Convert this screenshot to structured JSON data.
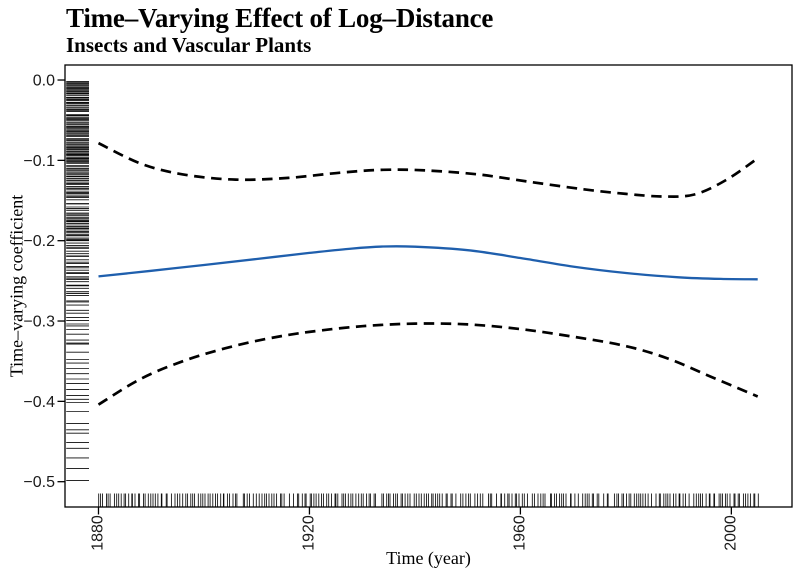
{
  "header": {
    "title": "Time–Varying Effect of Log–Distance",
    "subtitle": "Insects and Vascular Plants"
  },
  "chart_data": {
    "type": "line",
    "title": "Time–Varying Effect of Log–Distance",
    "subtitle": "Insects and Vascular Plants",
    "xlabel": "Time (year)",
    "ylabel": "Time–varying coefficient",
    "grid": false,
    "legend": "none",
    "x_domain": [
      1873.65,
      2011.5
    ],
    "y_domain": [
      -0.5315,
      0.0187
    ],
    "x_ticks": {
      "values": [
        1880,
        1920,
        1960,
        2000
      ],
      "labels": [
        "1880",
        "1920",
        "1960",
        "2000"
      ]
    },
    "y_ticks": {
      "values": [
        0,
        -0.1,
        -0.2,
        -0.3,
        -0.4,
        -0.5
      ],
      "labels": [
        "0.0",
        "−0.1",
        "−0.2",
        "−0.3",
        "−0.4",
        "−0.5"
      ]
    },
    "series": [
      {
        "name": "estimate",
        "style": "solid",
        "color": "#1f5fad",
        "width": 2.3,
        "x": [
          1880,
          1890,
          1900,
          1910,
          1920,
          1928,
          1934,
          1940,
          1950,
          1960,
          1970,
          1980,
          1990,
          1998,
          2005
        ],
        "y": [
          -0.2445,
          -0.2375,
          -0.2302,
          -0.2228,
          -0.2152,
          -0.2098,
          -0.2072,
          -0.2075,
          -0.2118,
          -0.2215,
          -0.2322,
          -0.2402,
          -0.2456,
          -0.2476,
          -0.248
        ]
      },
      {
        "name": "upper-95-ci",
        "style": "dashed",
        "color": "#000000",
        "width": 2.7,
        "x": [
          1880,
          1888,
          1896,
          1906,
          1916,
          1926,
          1934,
          1942,
          1952,
          1962,
          1972,
          1980,
          1987,
          1993,
          1999,
          2005
        ],
        "y": [
          -0.0785,
          -0.104,
          -0.1175,
          -0.124,
          -0.1218,
          -0.1152,
          -0.1118,
          -0.1125,
          -0.1175,
          -0.127,
          -0.136,
          -0.1418,
          -0.145,
          -0.1425,
          -0.1245,
          -0.0975
        ]
      },
      {
        "name": "lower-95-ci",
        "style": "dashed",
        "color": "#000000",
        "width": 2.7,
        "x": [
          1880,
          1888,
          1896,
          1904,
          1912,
          1920,
          1930,
          1940,
          1950,
          1960,
          1970,
          1980,
          1988,
          1996,
          2005
        ],
        "y": [
          -0.404,
          -0.372,
          -0.35,
          -0.334,
          -0.322,
          -0.3135,
          -0.3065,
          -0.3032,
          -0.3042,
          -0.31,
          -0.3195,
          -0.3312,
          -0.3468,
          -0.369,
          -0.394
        ]
      }
    ],
    "rug_left": {
      "side": "left",
      "runs": [
        [
          -0.002,
          -0.105,
          0.0012
        ],
        [
          -0.105,
          -0.2,
          0.0016
        ],
        [
          -0.2,
          -0.265,
          0.0026
        ],
        [
          -0.265,
          -0.33,
          0.0042
        ],
        [
          -0.33,
          -0.405,
          0.0062
        ],
        [
          -0.405,
          -0.465,
          0.0095
        ],
        [
          -0.465,
          -0.505,
          0.014
        ]
      ]
    },
    "rug_bottom": {
      "side": "bottom",
      "range": [
        1880,
        2005.2
      ],
      "step": 0.47
    },
    "colors": {
      "frame": "#000000",
      "tick": "#000000",
      "rug": "#0a0a0a"
    }
  }
}
